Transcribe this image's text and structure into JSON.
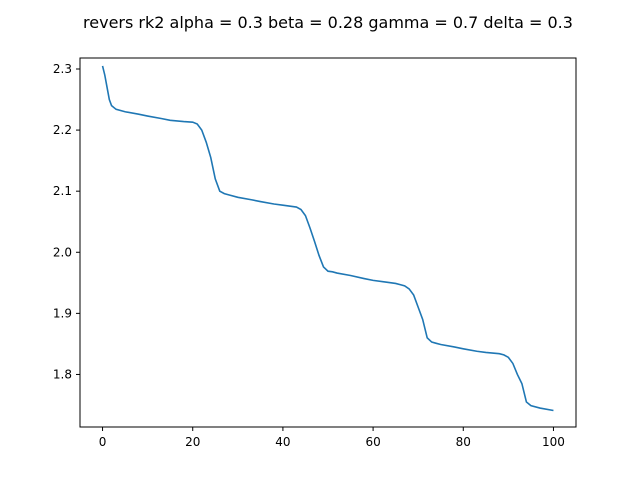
{
  "chart_data": {
    "type": "line",
    "title": "revers rk2 alpha = 0.3 beta = 0.28 gamma = 0.7 delta = 0.3",
    "xlabel": "",
    "ylabel": "",
    "xlim": [
      -5,
      105
    ],
    "ylim": [
      1.714,
      2.318
    ],
    "xticks": [
      0,
      20,
      40,
      60,
      80,
      100
    ],
    "yticks": [
      1.8,
      1.9,
      2.0,
      2.1,
      2.2,
      2.3
    ],
    "grid": false,
    "line_color": "#1f77b4",
    "series": [
      {
        "x": [
          0,
          0.5,
          1,
          1.5,
          2,
          3,
          5,
          8,
          10,
          13,
          15,
          18,
          20,
          21,
          22,
          23,
          24,
          25,
          26,
          27,
          28,
          30,
          33,
          35,
          38,
          40,
          43,
          44,
          45,
          46,
          47,
          48,
          49,
          50,
          51,
          52,
          55,
          58,
          60,
          63,
          65,
          66,
          67,
          68,
          69,
          70,
          71,
          72,
          73,
          74,
          75,
          78,
          80,
          83,
          85,
          88,
          89,
          90,
          91,
          92,
          93,
          94,
          95,
          97,
          100
        ],
        "y": [
          2.305,
          2.29,
          2.27,
          2.25,
          2.24,
          2.234,
          2.23,
          2.226,
          2.223,
          2.219,
          2.216,
          2.214,
          2.213,
          2.21,
          2.2,
          2.18,
          2.155,
          2.12,
          2.1,
          2.096,
          2.094,
          2.09,
          2.086,
          2.083,
          2.079,
          2.077,
          2.074,
          2.07,
          2.06,
          2.04,
          2.018,
          1.995,
          1.976,
          1.969,
          1.968,
          1.966,
          1.962,
          1.957,
          1.954,
          1.951,
          1.949,
          1.947,
          1.945,
          1.94,
          1.93,
          1.91,
          1.89,
          1.86,
          1.853,
          1.851,
          1.849,
          1.845,
          1.842,
          1.838,
          1.836,
          1.834,
          1.832,
          1.828,
          1.818,
          1.8,
          1.785,
          1.755,
          1.749,
          1.745,
          1.741
        ]
      }
    ]
  }
}
